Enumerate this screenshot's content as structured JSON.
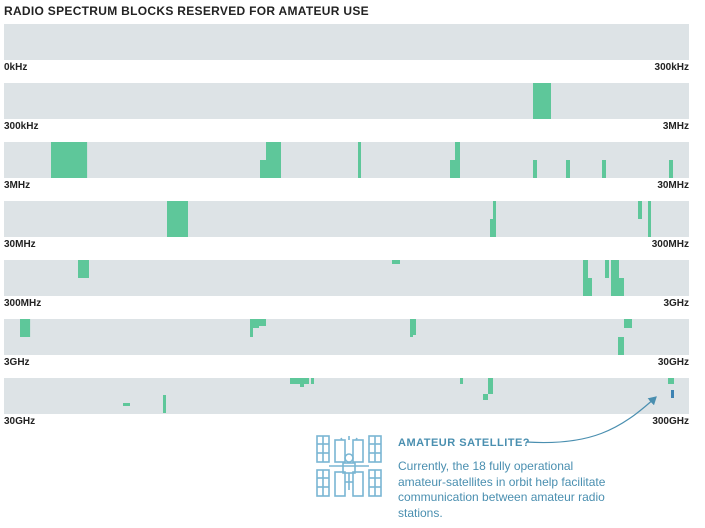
{
  "title": "RADIO SPECTRUM BLOCKS RESERVED FOR AMATEUR USE",
  "colors": {
    "band": "#5ec79a",
    "background": "#dde3e6",
    "satellite": "#3d83b3",
    "annotation": "#4a8fb0"
  },
  "annotation": {
    "heading": "AMATEUR SATELLITE?",
    "body": "Currently, the 18 fully operational amateur-satellites in orbit help facilitate communication between amateur radio stations.",
    "icon": "satellite-icon"
  },
  "chart_data": {
    "type": "bar",
    "title": "RADIO SPECTRUM BLOCKS RESERVED FOR AMATEUR USE",
    "description_units": "each row is a frequency range; blocks are expressed as fraction of row width (start, end) and vertical lane (top or bottom half)",
    "rows": [
      {
        "start_label": "0kHz",
        "end_label": "300kHz",
        "blocks": []
      },
      {
        "start_label": "300kHz",
        "end_label": "3MHz",
        "blocks": [
          {
            "from": 0.7723,
            "to": 0.7986,
            "lane": "full"
          }
        ]
      },
      {
        "start_label": "3MHz",
        "end_label": "30MHz",
        "blocks": [
          {
            "from": 0.0686,
            "to": 0.1213,
            "lane": "full"
          },
          {
            "from": 0.3737,
            "to": 0.3825,
            "lane": "bottom"
          },
          {
            "from": 0.3825,
            "to": 0.4044,
            "lane": "full"
          },
          {
            "from": 0.5168,
            "to": 0.5212,
            "lane": "full"
          },
          {
            "from": 0.6511,
            "to": 0.6584,
            "lane": "bottom"
          },
          {
            "from": 0.6584,
            "to": 0.6657,
            "lane": "full"
          },
          {
            "from": 0.7723,
            "to": 0.7781,
            "lane": "bottom"
          },
          {
            "from": 0.8204,
            "to": 0.8263,
            "lane": "bottom"
          },
          {
            "from": 0.873,
            "to": 0.8788,
            "lane": "bottom"
          },
          {
            "from": 0.9708,
            "to": 0.9766,
            "lane": "bottom"
          }
        ]
      },
      {
        "start_label": "30MHz",
        "end_label": "300MHz",
        "blocks": [
          {
            "from": 0.238,
            "to": 0.2686,
            "lane": "full"
          },
          {
            "from": 0.7095,
            "to": 0.7139,
            "lane": "bottom"
          },
          {
            "from": 0.7139,
            "to": 0.7183,
            "lane": "full"
          },
          {
            "from": 0.9255,
            "to": 0.9314,
            "lane": "top"
          },
          {
            "from": 0.9401,
            "to": 0.9445,
            "lane": "full"
          }
        ]
      },
      {
        "start_label": "300MHz",
        "end_label": "3GHz",
        "blocks": [
          {
            "from": 0.108,
            "to": 0.1241,
            "lane": "top"
          },
          {
            "from": 0.5664,
            "to": 0.5781,
            "lane": "sliver"
          },
          {
            "from": 0.8453,
            "to": 0.8526,
            "lane": "full"
          },
          {
            "from": 0.8526,
            "to": 0.8584,
            "lane": "bottom"
          },
          {
            "from": 0.8774,
            "to": 0.8832,
            "lane": "top"
          },
          {
            "from": 0.8861,
            "to": 0.8978,
            "lane": "full"
          },
          {
            "from": 0.8978,
            "to": 0.9051,
            "lane": "bottom"
          }
        ]
      },
      {
        "start_label": "3GHz",
        "end_label": "30GHz",
        "blocks": [
          {
            "from": 0.0233,
            "to": 0.038,
            "lane": "top"
          },
          {
            "from": 0.3591,
            "to": 0.3635,
            "lane": "top"
          },
          {
            "from": 0.3635,
            "to": 0.3723,
            "lane": "upper"
          },
          {
            "from": 0.3723,
            "to": 0.3825,
            "lane": "upper-short"
          },
          {
            "from": 0.5927,
            "to": 0.5971,
            "lane": "top"
          },
          {
            "from": 0.5971,
            "to": 0.6015,
            "lane": "mid"
          },
          {
            "from": 0.8964,
            "to": 0.9051,
            "lane": "bottom"
          },
          {
            "from": 0.9051,
            "to": 0.9168,
            "lane": "upper"
          }
        ]
      },
      {
        "start_label": "30GHz",
        "end_label": "300GHz",
        "blocks": [
          {
            "from": 0.1737,
            "to": 0.1839,
            "lane": "low-sliver"
          },
          {
            "from": 0.2321,
            "to": 0.2365,
            "lane": "lower"
          },
          {
            "from": 0.4175,
            "to": 0.4248,
            "lane": "top-short"
          },
          {
            "from": 0.4248,
            "to": 0.4321,
            "lane": "top-short"
          },
          {
            "from": 0.4321,
            "to": 0.438,
            "lane": "top-mid"
          },
          {
            "from": 0.438,
            "to": 0.4453,
            "lane": "top-short"
          },
          {
            "from": 0.4482,
            "to": 0.4526,
            "lane": "top-short"
          },
          {
            "from": 0.6657,
            "to": 0.6701,
            "lane": "top-short"
          },
          {
            "from": 0.6993,
            "to": 0.7066,
            "lane": "mid-low"
          },
          {
            "from": 0.7066,
            "to": 0.7139,
            "lane": "mid"
          },
          {
            "from": 0.9693,
            "to": 0.9737,
            "lane": "top-short"
          },
          {
            "from": 0.9737,
            "to": 0.9781,
            "lane": "top-short"
          },
          {
            "from": 0.9737,
            "to": 0.9781,
            "lane": "sat",
            "satellite": true
          }
        ]
      }
    ]
  }
}
